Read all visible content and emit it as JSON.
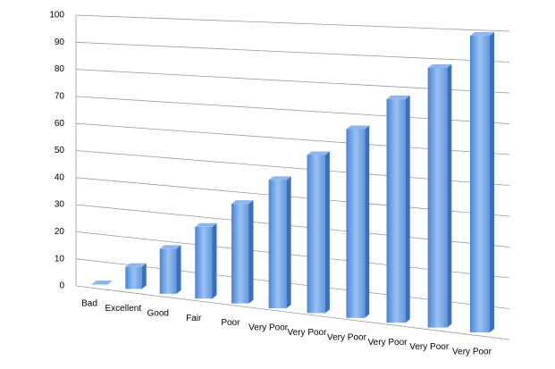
{
  "chart_data": {
    "type": "bar3d",
    "categories": [
      "Bad",
      "Excellent",
      "Good",
      "Fair",
      "Poor",
      "Very Poor",
      "Very Poor",
      "Very Poor",
      "Very Poor",
      "Very Poor",
      "Very Poor"
    ],
    "values": [
      0,
      8,
      16,
      25,
      34,
      43,
      52,
      61,
      71,
      81,
      91
    ],
    "color": "#5b92de",
    "ylim": [
      0,
      100
    ],
    "yticks": [
      0,
      10,
      20,
      30,
      40,
      50,
      60,
      70,
      80,
      90,
      100
    ],
    "grid": true
  }
}
